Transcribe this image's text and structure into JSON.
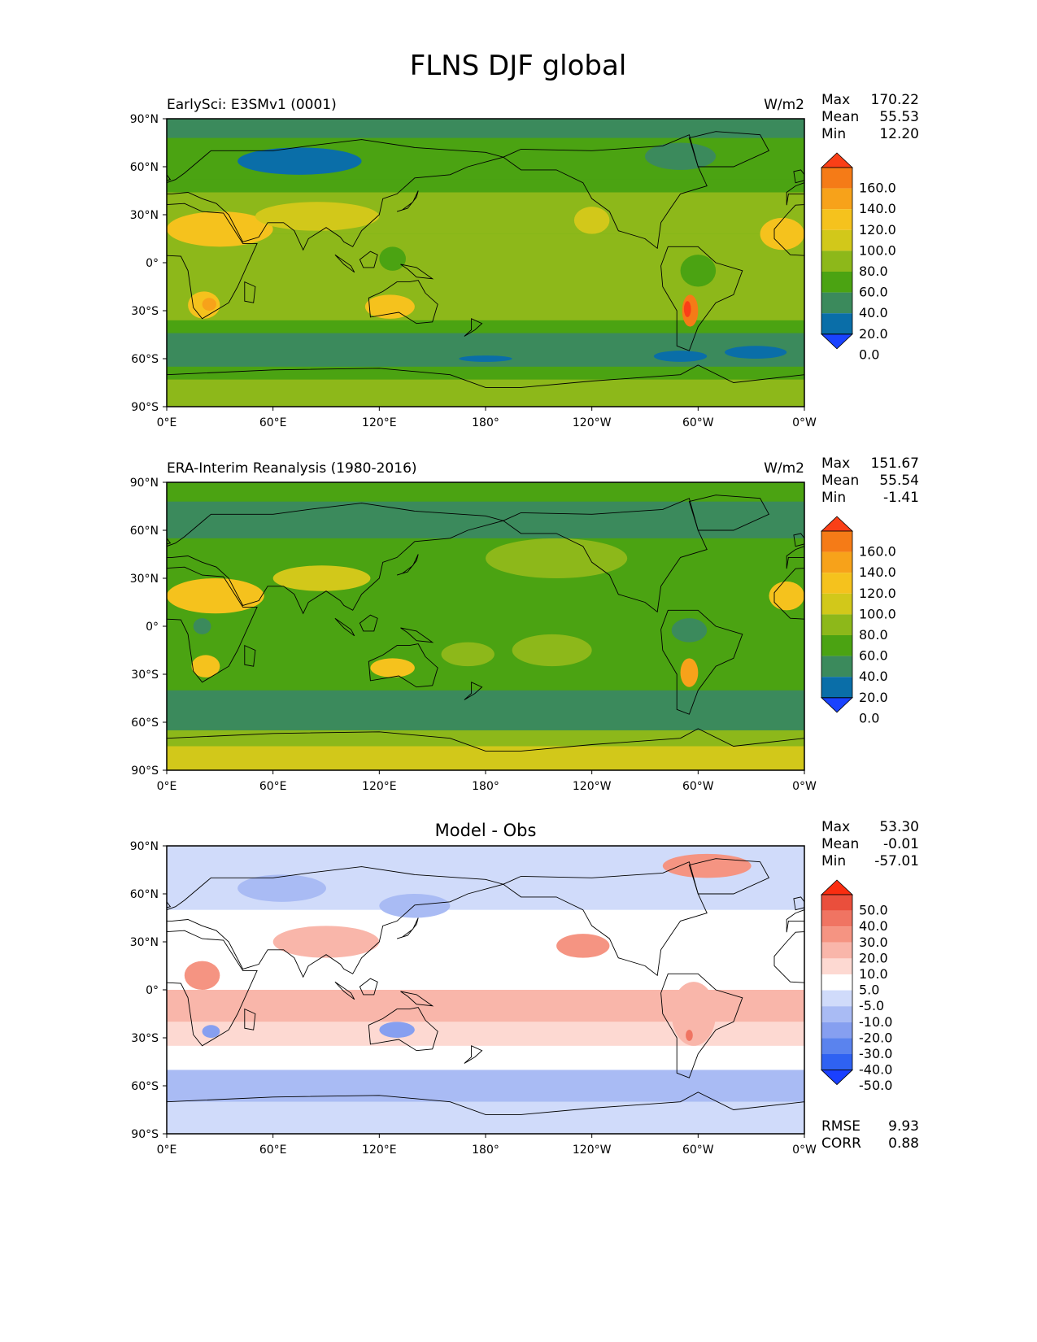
{
  "figure": {
    "title": "FLNS DJF global"
  },
  "colors": {
    "abs_levels": [
      "#1a43ff",
      "#0a6ea8",
      "#3b8a5c",
      "#4ba312",
      "#8db81a",
      "#d2c81a",
      "#f5c21d",
      "#f7a21a",
      "#f57b17",
      "#fa3f17"
    ],
    "diff_levels": [
      "#1a40ff",
      "#2f62f2",
      "#5a83ee",
      "#869ff0",
      "#a9bbf4",
      "#d0dbfa",
      "#ffffff",
      "#fdd9d2",
      "#f9b6aa",
      "#f59482",
      "#f07462",
      "#ea4f3c",
      "#fa2d10"
    ],
    "land_outline": "#000000"
  },
  "chart_data": [
    {
      "type": "heatmap",
      "title_left": "EarlySci: E3SMv1 (0001)",
      "title_center": "",
      "units": "W/m2",
      "stats": [
        {
          "label": "Max",
          "value": "170.22"
        },
        {
          "label": "Mean",
          "value": "55.53"
        },
        {
          "label": "Min",
          "value": "12.20"
        }
      ],
      "xticks": [
        "0°E",
        "60°E",
        "120°E",
        "180°",
        "120°W",
        "60°W",
        "0°W"
      ],
      "yticks": [
        "90°N",
        "60°N",
        "30°N",
        "0°",
        "30°S",
        "60°S",
        "90°S"
      ],
      "xlim": [
        0,
        360
      ],
      "ylim": [
        -90,
        90
      ],
      "colorbar_labels": [
        "160.0",
        "140.0",
        "120.0",
        "100.0",
        "80.0",
        "60.0",
        "40.0",
        "20.0",
        "0.0"
      ],
      "colorbar_scheme": "abs",
      "bands": [
        {
          "lat": [
            -90,
            -73
          ],
          "level": 4
        },
        {
          "lat": [
            -73,
            -65
          ],
          "level": 3
        },
        {
          "lat": [
            -65,
            -44
          ],
          "level": 2
        },
        {
          "lat": [
            -44,
            -36
          ],
          "level": 3
        },
        {
          "lat": [
            -36,
            18
          ],
          "level": 4
        },
        {
          "lat": [
            18,
            44
          ],
          "level": 4
        },
        {
          "lat": [
            44,
            52
          ],
          "level": 3
        },
        {
          "lat": [
            52,
            78
          ],
          "level": 3
        },
        {
          "lat": [
            78,
            90
          ],
          "level": 2
        }
      ],
      "regions": [
        {
          "lon": [
            0,
            60
          ],
          "lat": [
            10,
            32
          ],
          "level": 6
        },
        {
          "lon": [
            12,
            30
          ],
          "lat": [
            -35,
            -18
          ],
          "level": 6
        },
        {
          "lon": [
            20,
            28
          ],
          "lat": [
            -30,
            -22
          ],
          "level": 7
        },
        {
          "lon": [
            112,
            140
          ],
          "lat": [
            -35,
            -20
          ],
          "level": 6
        },
        {
          "lon": [
            291,
            300
          ],
          "lat": [
            -40,
            -20
          ],
          "level": 8
        },
        {
          "lon": [
            292,
            296
          ],
          "lat": [
            -34,
            -24
          ],
          "level": 9
        },
        {
          "lon": [
            335,
            360
          ],
          "lat": [
            8,
            28
          ],
          "level": 6
        },
        {
          "lon": [
            50,
            120
          ],
          "lat": [
            20,
            38
          ],
          "level": 5
        },
        {
          "lon": [
            230,
            250
          ],
          "lat": [
            18,
            35
          ],
          "level": 5
        },
        {
          "lon": [
            40,
            110
          ],
          "lat": [
            55,
            72
          ],
          "level": 1
        },
        {
          "lon": [
            270,
            310
          ],
          "lat": [
            58,
            75
          ],
          "level": 2
        },
        {
          "lon": [
            275,
            305
          ],
          "lat": [
            -62,
            -55
          ],
          "level": 1
        },
        {
          "lon": [
            165,
            195
          ],
          "lat": [
            -62,
            -58
          ],
          "level": 1
        },
        {
          "lon": [
            315,
            350
          ],
          "lat": [
            -60,
            -52
          ],
          "level": 1
        },
        {
          "lon": [
            120,
            135
          ],
          "lat": [
            -5,
            10
          ],
          "level": 3
        },
        {
          "lon": [
            290,
            310
          ],
          "lat": [
            -15,
            5
          ],
          "level": 3
        }
      ]
    },
    {
      "type": "heatmap",
      "title_left": "ERA-Interim Reanalysis (1980-2016)",
      "title_center": "",
      "units": "W/m2",
      "stats": [
        {
          "label": "Max",
          "value": "151.67"
        },
        {
          "label": "Mean",
          "value": "55.54"
        },
        {
          "label": "Min",
          "value": "-1.41"
        }
      ],
      "xticks": [
        "0°E",
        "60°E",
        "120°E",
        "180°",
        "120°W",
        "60°W",
        "0°W"
      ],
      "yticks": [
        "90°N",
        "60°N",
        "30°N",
        "0°",
        "30°S",
        "60°S",
        "90°S"
      ],
      "xlim": [
        0,
        360
      ],
      "ylim": [
        -90,
        90
      ],
      "colorbar_labels": [
        "160.0",
        "140.0",
        "120.0",
        "100.0",
        "80.0",
        "60.0",
        "40.0",
        "20.0",
        "0.0"
      ],
      "colorbar_scheme": "abs",
      "bands": [
        {
          "lat": [
            -90,
            -75
          ],
          "level": 5
        },
        {
          "lat": [
            -75,
            -65
          ],
          "level": 4
        },
        {
          "lat": [
            -65,
            -40
          ],
          "level": 2
        },
        {
          "lat": [
            -40,
            45
          ],
          "level": 3
        },
        {
          "lat": [
            45,
            55
          ],
          "level": 3
        },
        {
          "lat": [
            55,
            78
          ],
          "level": 2
        },
        {
          "lat": [
            78,
            90
          ],
          "level": 3
        }
      ],
      "regions": [
        {
          "lon": [
            0,
            55
          ],
          "lat": [
            8,
            30
          ],
          "level": 6
        },
        {
          "lon": [
            14,
            30
          ],
          "lat": [
            -32,
            -18
          ],
          "level": 6
        },
        {
          "lon": [
            115,
            140
          ],
          "lat": [
            -32,
            -20
          ],
          "level": 6
        },
        {
          "lon": [
            290,
            300
          ],
          "lat": [
            -38,
            -20
          ],
          "level": 7
        },
        {
          "lon": [
            340,
            360
          ],
          "lat": [
            10,
            28
          ],
          "level": 6
        },
        {
          "lon": [
            60,
            115
          ],
          "lat": [
            22,
            38
          ],
          "level": 5
        },
        {
          "lon": [
            155,
            185
          ],
          "lat": [
            -25,
            -10
          ],
          "level": 4
        },
        {
          "lon": [
            195,
            240
          ],
          "lat": [
            -25,
            -5
          ],
          "level": 4
        },
        {
          "lon": [
            285,
            305
          ],
          "lat": [
            -10,
            5
          ],
          "level": 2
        },
        {
          "lon": [
            15,
            25
          ],
          "lat": [
            -5,
            5
          ],
          "level": 2
        },
        {
          "lon": [
            180,
            260
          ],
          "lat": [
            30,
            55
          ],
          "level": 4
        }
      ]
    },
    {
      "type": "heatmap",
      "title_left": "",
      "title_center": "Model - Obs",
      "units": "",
      "stats": [
        {
          "label": "Max",
          "value": "53.30"
        },
        {
          "label": "Mean",
          "value": "-0.01"
        },
        {
          "label": "Min",
          "value": "-57.01"
        }
      ],
      "xticks": [
        "0°E",
        "60°E",
        "120°E",
        "180°",
        "120°W",
        "60°W",
        "0°W"
      ],
      "yticks": [
        "90°N",
        "60°N",
        "30°N",
        "0°",
        "30°S",
        "60°S",
        "90°S"
      ],
      "xlim": [
        0,
        360
      ],
      "ylim": [
        -90,
        90
      ],
      "colorbar_labels": [
        "50.0",
        "40.0",
        "30.0",
        "20.0",
        "10.0",
        "5.0",
        "-5.0",
        "-10.0",
        "-20.0",
        "-30.0",
        "-40.0",
        "-50.0"
      ],
      "colorbar_scheme": "diff",
      "bands": [
        {
          "lat": [
            -90,
            -70
          ],
          "level": 5
        },
        {
          "lat": [
            -70,
            -50
          ],
          "level": 4
        },
        {
          "lat": [
            -50,
            -35
          ],
          "level": 6
        },
        {
          "lat": [
            -35,
            -20
          ],
          "level": 7
        },
        {
          "lat": [
            -20,
            0
          ],
          "level": 8
        },
        {
          "lat": [
            0,
            20
          ],
          "level": 6
        },
        {
          "lat": [
            20,
            50
          ],
          "level": 6
        },
        {
          "lat": [
            50,
            90
          ],
          "level": 5
        }
      ],
      "regions": [
        {
          "lon": [
            60,
            120
          ],
          "lat": [
            20,
            40
          ],
          "level": 8
        },
        {
          "lon": [
            220,
            250
          ],
          "lat": [
            20,
            35
          ],
          "level": 9
        },
        {
          "lon": [
            285,
            310
          ],
          "lat": [
            -35,
            5
          ],
          "level": 8
        },
        {
          "lon": [
            293,
            297
          ],
          "lat": [
            -32,
            -25
          ],
          "level": 10
        },
        {
          "lon": [
            120,
            140
          ],
          "lat": [
            -30,
            -20
          ],
          "level": 3
        },
        {
          "lon": [
            20,
            30
          ],
          "lat": [
            -30,
            -22
          ],
          "level": 3
        },
        {
          "lon": [
            120,
            160
          ],
          "lat": [
            45,
            60
          ],
          "level": 4
        },
        {
          "lon": [
            280,
            330
          ],
          "lat": [
            70,
            85
          ],
          "level": 9
        },
        {
          "lon": [
            40,
            90
          ],
          "lat": [
            55,
            72
          ],
          "level": 4
        },
        {
          "lon": [
            10,
            30
          ],
          "lat": [
            0,
            18
          ],
          "level": 9
        }
      ]
    }
  ],
  "bottom_stats": [
    {
      "label": "RMSE",
      "value": "9.93"
    },
    {
      "label": "CORR",
      "value": "0.88"
    }
  ]
}
